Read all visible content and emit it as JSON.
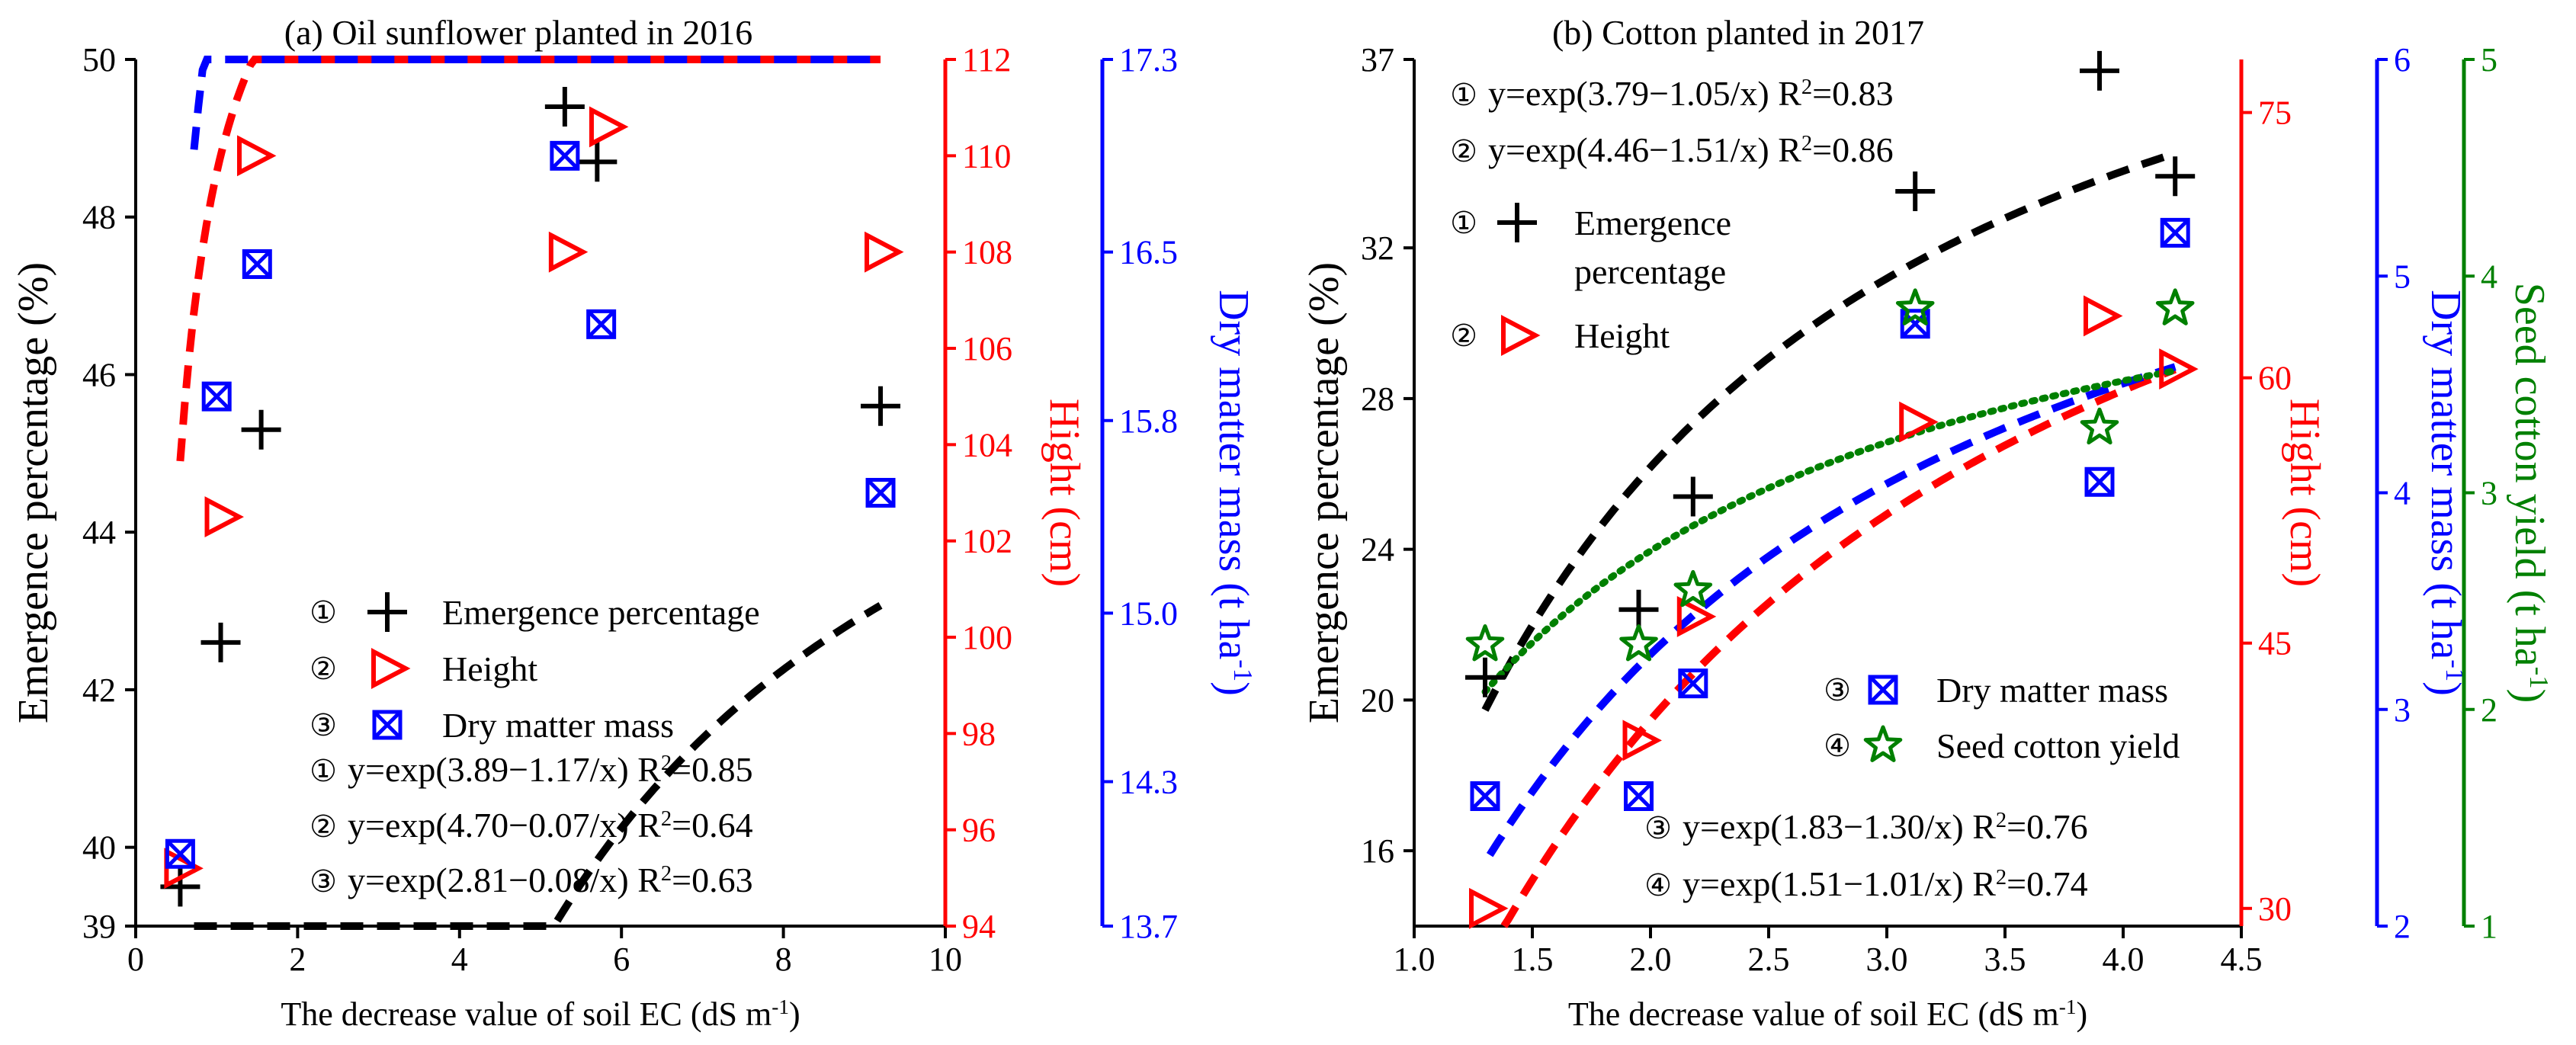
{
  "chart_data": [
    {
      "type": "scatter",
      "title": "(a) Oil sunflower planted in 2016",
      "xlabel": "The decrease value of soil EC (dS m",
      "xlabel_sup": "-1",
      "xlabel_end": ")",
      "xlim": [
        0,
        10
      ],
      "xticks": [
        "0",
        "2",
        "4",
        "6",
        "8",
        "10"
      ],
      "axes": [
        {
          "name": "Emergence percentage (%)",
          "color": "#000000",
          "lim": [
            39,
            50
          ],
          "ticks": [
            "39",
            "40",
            "42",
            "44",
            "46",
            "48",
            "50"
          ],
          "sup": ""
        },
        {
          "name": "Hight (cm)",
          "color": "#ff0000",
          "lim": [
            94,
            112
          ],
          "ticks": [
            "94",
            "96",
            "98",
            "100",
            "102",
            "104",
            "106",
            "108",
            "110",
            "112"
          ],
          "sup": ""
        },
        {
          "name": "Dry matter mass (t ha",
          "color": "#0000ff",
          "lim": [
            13.7,
            17.3
          ],
          "ticks": [
            "13.7",
            "14.3",
            "15.0",
            "15.8",
            "16.5",
            "17.3"
          ],
          "sup": "-1",
          "end": ")"
        }
      ],
      "series": [
        {
          "name": "Emergence percentage",
          "axis": 0,
          "marker": "plus",
          "color": "#000000",
          "x": [
            0.55,
            1.05,
            1.55,
            5.3,
            5.7,
            9.2
          ],
          "y": [
            39.5,
            42.6,
            45.3,
            49.4,
            48.7,
            45.6
          ],
          "fit": {
            "a": 3.89,
            "b": 1.17,
            "r2": 0.85
          }
        },
        {
          "name": "Height",
          "axis": 1,
          "marker": "triangle",
          "color": "#ff0000",
          "x": [
            0.55,
            1.05,
            1.45,
            5.3,
            5.8,
            9.2
          ],
          "y": [
            95.2,
            102.5,
            110.0,
            108.0,
            110.6,
            108.0
          ],
          "fit": {
            "a": 4.7,
            "b": 0.07,
            "r2": 0.64
          }
        },
        {
          "name": "Dry matter mass",
          "axis": 2,
          "marker": "boxx",
          "color": "#0000ff",
          "x": [
            0.55,
            1.0,
            1.5,
            5.3,
            5.75,
            9.2
          ],
          "y": [
            14.0,
            15.9,
            16.45,
            16.9,
            16.2,
            15.5
          ],
          "fit": {
            "a": 2.81,
            "b": 0.08,
            "r2": 0.63
          }
        }
      ],
      "legend": [
        {
          "num": "①",
          "label": "Emergence percentage"
        },
        {
          "num": "②",
          "label": "Height"
        },
        {
          "num": "③",
          "label": "Dry matter mass"
        }
      ],
      "equations": [
        {
          "num": "①",
          "text": "y=exp(3.89−1.17/x) R",
          "r2": "=0.85"
        },
        {
          "num": "②",
          "text": "y=exp(4.70−0.07/x) R",
          "r2": "=0.64"
        },
        {
          "num": "③",
          "text": "y=exp(2.81−0.08/x) R",
          "r2": "=0.63"
        }
      ]
    },
    {
      "type": "scatter",
      "title": "(b) Cotton planted in 2017",
      "xlabel": "The decrease value of soil EC (dS m",
      "xlabel_sup": "-1",
      "xlabel_end": ")",
      "xlim": [
        1.0,
        4.5
      ],
      "xticks": [
        "1.0",
        "1.5",
        "2.0",
        "2.5",
        "3.0",
        "3.5",
        "4.0",
        "4.5"
      ],
      "axes": [
        {
          "name": "Emergence percentage (%)",
          "color": "#000000",
          "lim": [
            14,
            37
          ],
          "ticks": [
            "16",
            "20",
            "24",
            "28",
            "32",
            "37"
          ],
          "sup": ""
        },
        {
          "name": "Hight (cm)",
          "color": "#ff0000",
          "lim": [
            29,
            78
          ],
          "ticks": [
            "30",
            "45",
            "60",
            "75"
          ],
          "sup": ""
        },
        {
          "name": "Dry matter mass (t ha",
          "color": "#0000ff",
          "lim": [
            2,
            6
          ],
          "ticks": [
            "2",
            "3",
            "4",
            "5",
            "6"
          ],
          "sup": "-1",
          "end": ")"
        },
        {
          "name": "Seed cotton yield (t ha",
          "color": "#008000",
          "lim": [
            1,
            5
          ],
          "ticks": [
            "1",
            "2",
            "3",
            "4",
            "5"
          ],
          "sup": "-1",
          "end": ")"
        }
      ],
      "series": [
        {
          "name": "Emergence percentage",
          "axis": 0,
          "marker": "plus",
          "color": "#000000",
          "x": [
            1.3,
            1.95,
            2.18,
            3.12,
            3.9,
            4.22
          ],
          "y": [
            20.6,
            22.4,
            25.4,
            33.5,
            36.7,
            33.9
          ],
          "fit": {
            "a": 3.79,
            "b": 1.05,
            "r2": 0.83
          }
        },
        {
          "name": "Height",
          "axis": 1,
          "marker": "triangle",
          "color": "#ff0000",
          "x": [
            1.3,
            1.95,
            2.18,
            3.12,
            3.9,
            4.22
          ],
          "y": [
            30.0,
            39.5,
            46.5,
            57.5,
            63.5,
            60.5
          ],
          "fit": {
            "a": 4.46,
            "b": 1.51,
            "r2": 0.86
          }
        },
        {
          "name": "Dry matter mass",
          "axis": 2,
          "marker": "boxx",
          "color": "#0000ff",
          "x": [
            1.3,
            1.95,
            2.18,
            3.12,
            3.9,
            4.22
          ],
          "y": [
            2.6,
            2.6,
            3.12,
            4.78,
            4.05,
            5.2
          ],
          "fit": {
            "a": 1.83,
            "b": 1.3,
            "r2": 0.76
          }
        },
        {
          "name": "Seed cotton yield",
          "axis": 3,
          "marker": "star",
          "color": "#008000",
          "x": [
            1.3,
            1.95,
            2.18,
            3.12,
            3.9,
            4.22
          ],
          "y": [
            2.3,
            2.3,
            2.55,
            3.85,
            3.3,
            3.85
          ],
          "fit": {
            "a": 1.51,
            "b": 1.01,
            "r2": 0.74
          }
        }
      ],
      "legend": [
        {
          "num": "①",
          "label": "Emergence",
          "label2": "percentage"
        },
        {
          "num": "②",
          "label": "Height"
        },
        {
          "num": "③",
          "label": "Dry matter mass"
        },
        {
          "num": "④",
          "label": "Seed cotton yield"
        }
      ],
      "equations": [
        {
          "num": "①",
          "text": "y=exp(3.79−1.05/x) R",
          "r2": "=0.83"
        },
        {
          "num": "②",
          "text": "y=exp(4.46−1.51/x) R",
          "r2": "=0.86"
        },
        {
          "num": "③",
          "text": "y=exp(1.83−1.30/x) R",
          "r2": "=0.76"
        },
        {
          "num": "④",
          "text": "y=exp(1.51−1.01/x) R",
          "r2": "=0.74"
        }
      ]
    }
  ]
}
